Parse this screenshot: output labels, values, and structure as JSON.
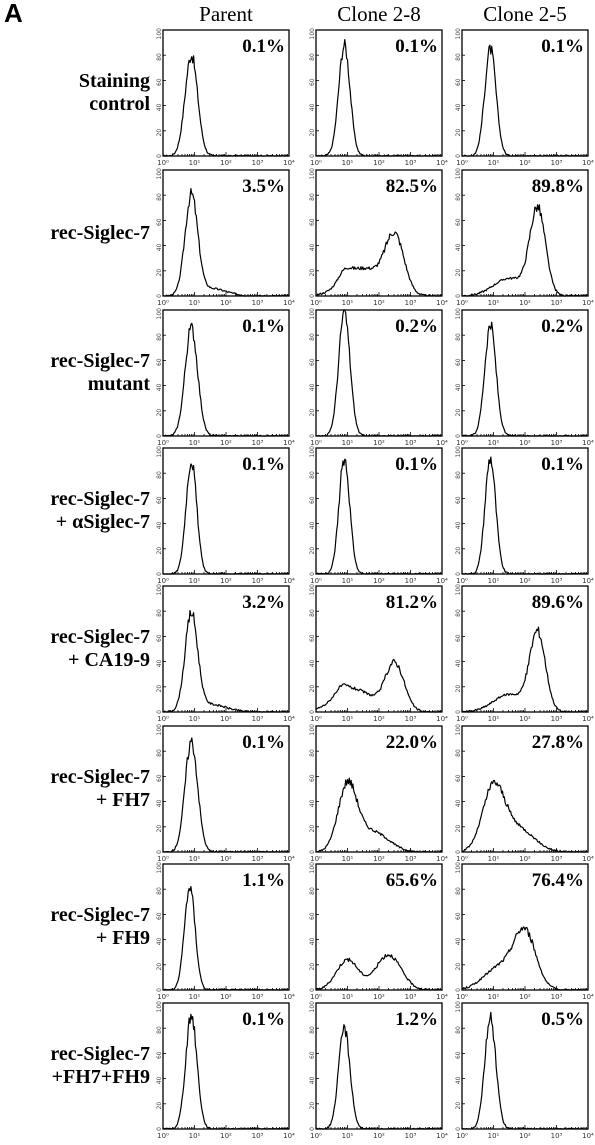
{
  "panel_label": "A",
  "chart_data": {
    "type": "histogram-grid",
    "columns": [
      "Parent",
      "Clone 2-8",
      "Clone 2-5"
    ],
    "x_scale": "log",
    "xlim": [
      1,
      10000
    ],
    "x_ticks": [
      "10⁰",
      "10¹",
      "10²",
      "10³",
      "10⁴"
    ],
    "ylim": [
      0,
      100
    ],
    "y_ticks": [
      "0",
      "20",
      "40",
      "60",
      "80",
      "100"
    ],
    "rows": [
      {
        "label": [
          "Staining",
          "control"
        ],
        "percentages": [
          "0.1%",
          "0.1%",
          "0.1%"
        ],
        "profiles": [
          [
            {
              "c": 0.9,
              "s": 0.2,
              "h": 80
            }
          ],
          [
            {
              "c": 0.9,
              "s": 0.18,
              "h": 88
            }
          ],
          [
            {
              "c": 0.9,
              "s": 0.18,
              "h": 85
            }
          ]
        ]
      },
      {
        "label": [
          "rec-Siglec-7"
        ],
        "percentages": [
          "3.5%",
          "82.5%",
          "89.8%"
        ],
        "profiles": [
          [
            {
              "c": 0.9,
              "s": 0.2,
              "h": 78
            },
            {
              "c": 1.5,
              "s": 0.5,
              "h": 6
            }
          ],
          [
            {
              "c": 1.5,
              "s": 0.6,
              "h": 22
            },
            {
              "c": 2.5,
              "s": 0.3,
              "h": 45
            },
            {
              "c": 0.9,
              "s": 0.2,
              "h": 8
            }
          ],
          [
            {
              "c": 2.4,
              "s": 0.25,
              "h": 68
            },
            {
              "c": 1.5,
              "s": 0.5,
              "h": 14
            }
          ]
        ]
      },
      {
        "label": [
          "rec-Siglec-7",
          "mutant"
        ],
        "percentages": [
          "0.1%",
          "0.2%",
          "0.2%"
        ],
        "profiles": [
          [
            {
              "c": 0.9,
              "s": 0.2,
              "h": 86
            }
          ],
          [
            {
              "c": 0.9,
              "s": 0.18,
              "h": 98
            }
          ],
          [
            {
              "c": 0.9,
              "s": 0.18,
              "h": 88
            }
          ]
        ]
      },
      {
        "label": [
          "rec-Siglec-7",
          "+ αSiglec-7"
        ],
        "percentages": [
          "0.1%",
          "0.1%",
          "0.1%"
        ],
        "profiles": [
          [
            {
              "c": 0.9,
              "s": 0.17,
              "h": 90
            }
          ],
          [
            {
              "c": 0.9,
              "s": 0.17,
              "h": 92
            }
          ],
          [
            {
              "c": 0.9,
              "s": 0.17,
              "h": 92
            }
          ]
        ]
      },
      {
        "label": [
          "rec-Siglec-7",
          "+ CA19-9"
        ],
        "percentages": [
          "3.2%",
          "81.2%",
          "89.6%"
        ],
        "profiles": [
          [
            {
              "c": 0.9,
              "s": 0.2,
              "h": 76
            },
            {
              "c": 1.5,
              "s": 0.5,
              "h": 6
            }
          ],
          [
            {
              "c": 1.2,
              "s": 0.6,
              "h": 18
            },
            {
              "c": 2.5,
              "s": 0.3,
              "h": 38
            },
            {
              "c": 0.8,
              "s": 0.2,
              "h": 6
            }
          ],
          [
            {
              "c": 2.4,
              "s": 0.25,
              "h": 62
            },
            {
              "c": 1.5,
              "s": 0.5,
              "h": 14
            }
          ]
        ]
      },
      {
        "label": [
          "rec-Siglec-7",
          "+ FH7"
        ],
        "percentages": [
          "0.1%",
          "22.0%",
          "27.8%"
        ],
        "profiles": [
          [
            {
              "c": 0.9,
              "s": 0.2,
              "h": 88
            }
          ],
          [
            {
              "c": 1.0,
              "s": 0.3,
              "h": 52
            },
            {
              "c": 1.8,
              "s": 0.5,
              "h": 16
            }
          ],
          [
            {
              "c": 1.0,
              "s": 0.35,
              "h": 50
            },
            {
              "c": 1.8,
              "s": 0.5,
              "h": 18
            }
          ]
        ]
      },
      {
        "label": [
          "rec-Siglec-7",
          "+ FH9"
        ],
        "percentages": [
          "1.1%",
          "65.6%",
          "76.4%"
        ],
        "profiles": [
          [
            {
              "c": 0.85,
              "s": 0.17,
              "h": 82
            }
          ],
          [
            {
              "c": 1.0,
              "s": 0.35,
              "h": 24
            },
            {
              "c": 2.3,
              "s": 0.4,
              "h": 28
            }
          ],
          [
            {
              "c": 2.0,
              "s": 0.35,
              "h": 44
            },
            {
              "c": 1.2,
              "s": 0.5,
              "h": 18
            }
          ]
        ]
      },
      {
        "label": [
          "rec-Siglec-7",
          "+FH7+FH9"
        ],
        "percentages": [
          "0.1%",
          "1.2%",
          "0.5%"
        ],
        "profiles": [
          [
            {
              "c": 0.9,
              "s": 0.18,
              "h": 90
            }
          ],
          [
            {
              "c": 0.9,
              "s": 0.18,
              "h": 80
            }
          ],
          [
            {
              "c": 0.9,
              "s": 0.18,
              "h": 88
            }
          ]
        ]
      }
    ]
  }
}
